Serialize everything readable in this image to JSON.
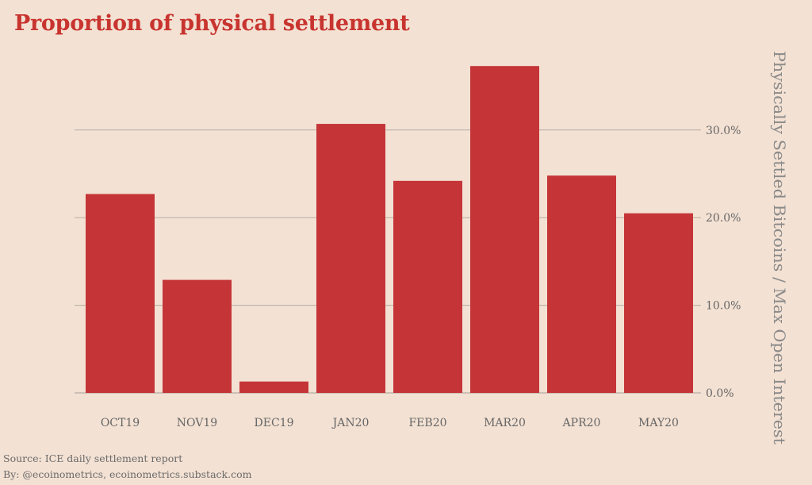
{
  "title": "Proportion of physical settlement",
  "source": "Source: ICE daily settlement report",
  "byline": "By: @ecoinometrics, ecoinometrics.substack.com",
  "colors": {
    "bar": "#c53538",
    "grid": "#b5aca4",
    "background": "#f3e1d3",
    "title": "#c8342f"
  },
  "chart_data": {
    "type": "bar",
    "categories": [
      "OCT19",
      "NOV19",
      "DEC19",
      "JAN20",
      "FEB20",
      "MAR20",
      "APR20",
      "MAY20"
    ],
    "values": [
      22.7,
      12.9,
      1.3,
      30.7,
      24.2,
      37.3,
      24.8,
      20.5
    ],
    "ylabel": "Physically Settled Bitcoins / Max Open Interest",
    "ylim": [
      0,
      37.8
    ],
    "yticks": [
      0,
      10,
      20,
      30
    ],
    "ytick_labels": [
      "0.0%",
      "10.0%",
      "20.0%",
      "30.0%"
    ],
    "y_axis_side": "right",
    "grid": true
  }
}
